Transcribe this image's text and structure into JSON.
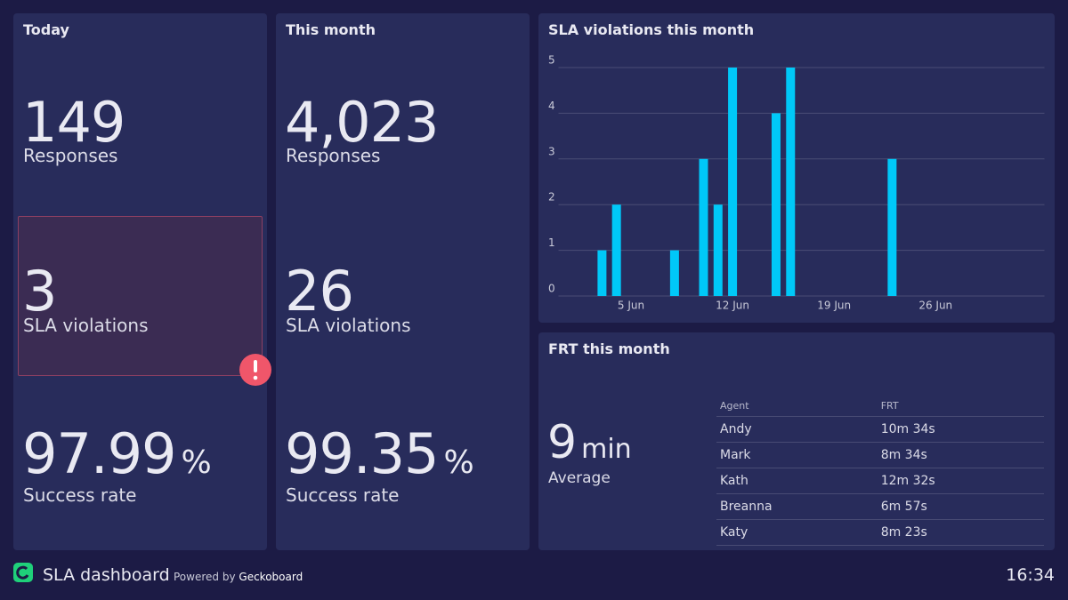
{
  "today": {
    "title": "Today",
    "responses": {
      "value": "149",
      "label": "Responses"
    },
    "violations": {
      "value": "3",
      "label": "SLA violations"
    },
    "success": {
      "value": "97.99",
      "unit": "%",
      "label": "Success rate"
    }
  },
  "month": {
    "title": "This month",
    "responses": {
      "value": "4,023",
      "label": "Responses"
    },
    "violations": {
      "value": "26",
      "label": "SLA violations"
    },
    "success": {
      "value": "99.35",
      "unit": "%",
      "label": "Success rate"
    }
  },
  "chart_data": {
    "type": "bar",
    "title": "SLA violations this month",
    "x": [
      3,
      4,
      8,
      10,
      11,
      12,
      15,
      16,
      23
    ],
    "values": [
      1,
      2,
      1,
      3,
      2,
      5,
      4,
      5,
      3
    ],
    "color": "#00c8f8",
    "xlim": [
      0,
      33.5
    ],
    "xticks": [
      {
        "value": 5,
        "label": "5 Jun"
      },
      {
        "value": 12,
        "label": "12 Jun"
      },
      {
        "value": 19,
        "label": "19 Jun"
      },
      {
        "value": 26,
        "label": "26 Jun"
      }
    ],
    "ylim": [
      0,
      5
    ],
    "yticks": [
      0,
      1,
      2,
      3,
      4,
      5
    ],
    "grid": true
  },
  "frt": {
    "title": "FRT this month",
    "average": {
      "value": "9",
      "unit": "min",
      "label": "Average"
    },
    "table": {
      "header": [
        "Agent",
        "FRT"
      ],
      "rows": [
        [
          "Andy",
          "10m 34s"
        ],
        [
          "Mark",
          "8m 34s"
        ],
        [
          "Kath",
          "12m 32s"
        ],
        [
          "Breanna",
          "6m 57s"
        ],
        [
          "Katy",
          "8m 23s"
        ]
      ]
    }
  },
  "footer": {
    "title": "SLA dashboard",
    "powered": "Powered by",
    "brand": "Geckoboard",
    "time": "16:34"
  }
}
